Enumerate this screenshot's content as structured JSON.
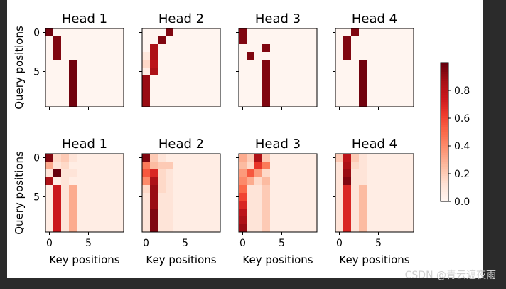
{
  "chart_data": {
    "type": "heatmap",
    "colormap": "Reds",
    "grid_size": [
      10,
      10
    ],
    "layout": {
      "rows": 2,
      "cols": 4
    },
    "panels": [
      {
        "title": "Head 1",
        "ylabel": "Query positions",
        "xlabel": "",
        "xticks": [],
        "yticks": [
          "0",
          "5"
        ],
        "matrix": [
          [
            0.98,
            0,
            0,
            0,
            0,
            0,
            0,
            0,
            0,
            0
          ],
          [
            0,
            0.95,
            0,
            0,
            0,
            0,
            0,
            0,
            0,
            0
          ],
          [
            0,
            0.95,
            0,
            0,
            0,
            0,
            0,
            0,
            0,
            0
          ],
          [
            0,
            0.95,
            0,
            0,
            0,
            0,
            0,
            0,
            0,
            0
          ],
          [
            0,
            0,
            0,
            0.98,
            0,
            0,
            0,
            0,
            0,
            0
          ],
          [
            0,
            0,
            0,
            0.98,
            0,
            0,
            0,
            0,
            0,
            0
          ],
          [
            0,
            0,
            0,
            0.98,
            0,
            0,
            0,
            0,
            0,
            0
          ],
          [
            0,
            0,
            0,
            0.98,
            0,
            0,
            0,
            0,
            0,
            0
          ],
          [
            0,
            0,
            0,
            0.98,
            0,
            0,
            0,
            0,
            0,
            0
          ],
          [
            0,
            0,
            0,
            0.98,
            0,
            0,
            0,
            0,
            0,
            0
          ]
        ]
      },
      {
        "title": "Head 2",
        "ylabel": "",
        "xlabel": "",
        "xticks": [],
        "yticks": [],
        "matrix": [
          [
            0,
            0,
            0,
            0.95,
            0,
            0,
            0,
            0,
            0,
            0
          ],
          [
            0,
            0,
            0.95,
            0,
            0,
            0,
            0,
            0,
            0,
            0
          ],
          [
            0,
            0.85,
            0,
            0,
            0,
            0,
            0,
            0,
            0,
            0
          ],
          [
            0.08,
            0.85,
            0,
            0,
            0,
            0,
            0,
            0,
            0,
            0
          ],
          [
            0.15,
            0.8,
            0,
            0,
            0,
            0,
            0,
            0,
            0,
            0
          ],
          [
            0.05,
            0.85,
            0,
            0,
            0,
            0,
            0,
            0,
            0,
            0
          ],
          [
            0.9,
            0,
            0,
            0,
            0,
            0,
            0,
            0,
            0,
            0
          ],
          [
            0.9,
            0,
            0,
            0,
            0,
            0,
            0,
            0,
            0,
            0
          ],
          [
            0.9,
            0,
            0,
            0,
            0,
            0,
            0,
            0,
            0,
            0
          ],
          [
            0.9,
            0,
            0,
            0,
            0,
            0,
            0,
            0,
            0,
            0
          ]
        ]
      },
      {
        "title": "Head 3",
        "ylabel": "",
        "xlabel": "",
        "xticks": [],
        "yticks": [],
        "matrix": [
          [
            0.95,
            0,
            0,
            0,
            0,
            0,
            0,
            0,
            0,
            0
          ],
          [
            0.95,
            0,
            0,
            0,
            0,
            0,
            0,
            0,
            0,
            0
          ],
          [
            0,
            0,
            0,
            0.95,
            0,
            0,
            0,
            0,
            0,
            0
          ],
          [
            0,
            0.95,
            0,
            0,
            0,
            0,
            0,
            0,
            0,
            0
          ],
          [
            0,
            0,
            0,
            0.95,
            0,
            0,
            0,
            0,
            0,
            0
          ],
          [
            0,
            0,
            0,
            0.95,
            0,
            0,
            0,
            0,
            0,
            0
          ],
          [
            0,
            0,
            0,
            0.95,
            0,
            0,
            0,
            0,
            0,
            0
          ],
          [
            0,
            0,
            0,
            0.95,
            0,
            0,
            0,
            0,
            0,
            0
          ],
          [
            0,
            0,
            0,
            0.95,
            0,
            0,
            0,
            0,
            0,
            0
          ],
          [
            0,
            0,
            0,
            0.95,
            0,
            0,
            0,
            0,
            0,
            0
          ]
        ]
      },
      {
        "title": "Head 4",
        "ylabel": "",
        "xlabel": "",
        "xticks": [],
        "yticks": [],
        "matrix": [
          [
            0,
            0,
            0.95,
            0,
            0,
            0,
            0,
            0,
            0,
            0
          ],
          [
            0,
            0.95,
            0,
            0,
            0,
            0,
            0,
            0,
            0,
            0
          ],
          [
            0,
            0.95,
            0,
            0,
            0,
            0,
            0,
            0,
            0,
            0
          ],
          [
            0,
            0.95,
            0,
            0,
            0,
            0,
            0,
            0,
            0,
            0
          ],
          [
            0,
            0,
            0,
            0.98,
            0,
            0,
            0,
            0,
            0,
            0
          ],
          [
            0,
            0,
            0,
            0.98,
            0,
            0,
            0,
            0,
            0,
            0
          ],
          [
            0,
            0,
            0,
            0.98,
            0,
            0,
            0,
            0,
            0,
            0
          ],
          [
            0,
            0,
            0,
            0.98,
            0,
            0,
            0,
            0,
            0,
            0
          ],
          [
            0,
            0,
            0,
            0.98,
            0,
            0,
            0,
            0,
            0,
            0
          ],
          [
            0,
            0,
            0,
            0.98,
            0,
            0,
            0,
            0,
            0,
            0
          ]
        ]
      },
      {
        "title": "Head 1",
        "ylabel": "Query positions",
        "xlabel": "Key positions",
        "xticks": [
          "0",
          "5"
        ],
        "yticks": [
          "0",
          "5"
        ],
        "matrix": [
          [
            0.95,
            0.15,
            0.2,
            0.1,
            0.05,
            0.05,
            0.05,
            0.05,
            0.05,
            0.05
          ],
          [
            0.3,
            0.1,
            0.15,
            0.05,
            0.05,
            0.05,
            0.05,
            0.05,
            0.05,
            0.05
          ],
          [
            0.1,
            1.0,
            0.1,
            0.1,
            0.05,
            0.05,
            0.05,
            0.05,
            0.05,
            0.05
          ],
          [
            0.85,
            0.05,
            0.1,
            0.05,
            0.05,
            0.05,
            0.05,
            0.05,
            0.05,
            0.05
          ],
          [
            0.05,
            0.75,
            0.1,
            0.3,
            0.05,
            0.05,
            0.05,
            0.05,
            0.05,
            0.05
          ],
          [
            0.05,
            0.75,
            0.1,
            0.3,
            0.05,
            0.05,
            0.05,
            0.05,
            0.05,
            0.05
          ],
          [
            0.05,
            0.75,
            0.1,
            0.3,
            0.05,
            0.05,
            0.05,
            0.05,
            0.05,
            0.05
          ],
          [
            0.05,
            0.75,
            0.1,
            0.3,
            0.05,
            0.05,
            0.05,
            0.05,
            0.05,
            0.05
          ],
          [
            0.05,
            0.75,
            0.1,
            0.3,
            0.05,
            0.05,
            0.05,
            0.05,
            0.05,
            0.05
          ],
          [
            0.05,
            0.75,
            0.1,
            0.3,
            0.05,
            0.05,
            0.05,
            0.05,
            0.05,
            0.05
          ]
        ]
      },
      {
        "title": "Head 2",
        "ylabel": "",
        "xlabel": "Key positions",
        "xticks": [
          "0",
          "5"
        ],
        "yticks": [],
        "matrix": [
          [
            0.95,
            0.2,
            0.1,
            0.05,
            0.05,
            0.05,
            0.05,
            0.05,
            0.05,
            0.05
          ],
          [
            0.45,
            0.25,
            0.2,
            0.2,
            0.05,
            0.05,
            0.05,
            0.05,
            0.05,
            0.05
          ],
          [
            0.55,
            0.7,
            0.15,
            0.1,
            0.05,
            0.05,
            0.05,
            0.05,
            0.05,
            0.05
          ],
          [
            0.4,
            0.85,
            0.15,
            0.1,
            0.05,
            0.05,
            0.05,
            0.05,
            0.05,
            0.05
          ],
          [
            0.15,
            0.9,
            0.15,
            0.1,
            0.05,
            0.05,
            0.05,
            0.05,
            0.05,
            0.05
          ],
          [
            0.1,
            0.9,
            0.1,
            0.1,
            0.05,
            0.05,
            0.05,
            0.05,
            0.05,
            0.05
          ],
          [
            0.1,
            0.9,
            0.1,
            0.1,
            0.05,
            0.05,
            0.05,
            0.05,
            0.05,
            0.05
          ],
          [
            0.1,
            0.95,
            0.1,
            0.1,
            0.05,
            0.05,
            0.05,
            0.05,
            0.05,
            0.05
          ],
          [
            0.1,
            0.95,
            0.1,
            0.1,
            0.05,
            0.05,
            0.05,
            0.05,
            0.05,
            0.05
          ],
          [
            0.1,
            0.95,
            0.1,
            0.1,
            0.05,
            0.05,
            0.05,
            0.05,
            0.05,
            0.05
          ]
        ]
      },
      {
        "title": "Head 3",
        "ylabel": "",
        "xlabel": "Key positions",
        "xticks": [
          "0",
          "5"
        ],
        "yticks": [],
        "matrix": [
          [
            0.3,
            0.2,
            0.85,
            0.2,
            0.05,
            0.05,
            0.05,
            0.05,
            0.05,
            0.05
          ],
          [
            0.25,
            0.15,
            0.65,
            0.45,
            0.05,
            0.05,
            0.05,
            0.05,
            0.05,
            0.05
          ],
          [
            0.35,
            0.55,
            0.35,
            0.15,
            0.05,
            0.05,
            0.05,
            0.05,
            0.05,
            0.05
          ],
          [
            0.4,
            0.3,
            0.15,
            0.25,
            0.05,
            0.05,
            0.05,
            0.05,
            0.05,
            0.05
          ],
          [
            0.5,
            0.1,
            0.1,
            0.2,
            0.05,
            0.05,
            0.05,
            0.05,
            0.05,
            0.05
          ],
          [
            0.6,
            0.1,
            0.1,
            0.2,
            0.05,
            0.05,
            0.05,
            0.05,
            0.05,
            0.05
          ],
          [
            0.7,
            0.1,
            0.1,
            0.2,
            0.05,
            0.05,
            0.05,
            0.05,
            0.05,
            0.05
          ],
          [
            0.8,
            0.1,
            0.1,
            0.2,
            0.05,
            0.05,
            0.05,
            0.05,
            0.05,
            0.05
          ],
          [
            0.85,
            0.1,
            0.1,
            0.2,
            0.05,
            0.05,
            0.05,
            0.05,
            0.05,
            0.05
          ],
          [
            0.9,
            0.1,
            0.1,
            0.2,
            0.05,
            0.05,
            0.05,
            0.05,
            0.05,
            0.05
          ]
        ]
      },
      {
        "title": "Head 4",
        "ylabel": "",
        "xlabel": "Key positions",
        "xticks": [
          "0",
          "5"
        ],
        "yticks": [],
        "matrix": [
          [
            0.2,
            0.8,
            0.2,
            0.1,
            0.05,
            0.05,
            0.05,
            0.05,
            0.05,
            0.05
          ],
          [
            0.1,
            0.85,
            0.15,
            0.1,
            0.05,
            0.05,
            0.05,
            0.05,
            0.05,
            0.05
          ],
          [
            0.1,
            0.9,
            0.1,
            0.1,
            0.05,
            0.05,
            0.05,
            0.05,
            0.05,
            0.05
          ],
          [
            0.1,
            0.95,
            0.1,
            0.1,
            0.05,
            0.05,
            0.05,
            0.05,
            0.05,
            0.05
          ],
          [
            0.1,
            0.7,
            0.1,
            0.25,
            0.05,
            0.05,
            0.05,
            0.05,
            0.05,
            0.05
          ],
          [
            0.1,
            0.7,
            0.1,
            0.25,
            0.05,
            0.05,
            0.05,
            0.05,
            0.05,
            0.05
          ],
          [
            0.1,
            0.7,
            0.1,
            0.25,
            0.05,
            0.05,
            0.05,
            0.05,
            0.05,
            0.05
          ],
          [
            0.1,
            0.7,
            0.1,
            0.25,
            0.05,
            0.05,
            0.05,
            0.05,
            0.05,
            0.05
          ],
          [
            0.1,
            0.7,
            0.1,
            0.25,
            0.05,
            0.05,
            0.05,
            0.05,
            0.05,
            0.05
          ],
          [
            0.1,
            0.7,
            0.1,
            0.25,
            0.05,
            0.05,
            0.05,
            0.05,
            0.05,
            0.05
          ]
        ]
      }
    ],
    "colorbar": {
      "range": [
        0,
        1
      ],
      "ticks": [
        "0.0",
        "0.2",
        "0.4",
        "0.6",
        "0.8"
      ],
      "tick_values": [
        0,
        0.2,
        0.4,
        0.6,
        0.8
      ]
    }
  },
  "watermark": "CSDN @青云遮夜雨",
  "colors": {
    "page_background": "#2b2b2b",
    "figure_background": "#ffffff",
    "low": "#fff5f0",
    "high": "#67000d"
  }
}
